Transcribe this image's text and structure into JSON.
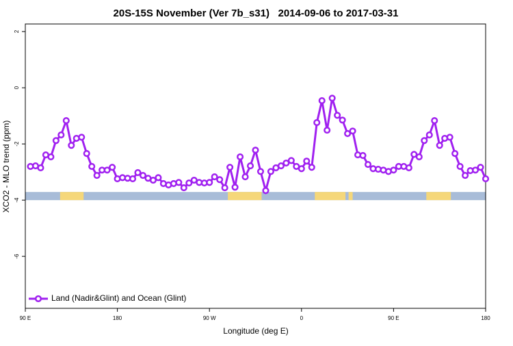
{
  "chart_data": {
    "type": "line",
    "title": "20S-15S November (Ver 7b_s31)   2014-09-06 to 2017-03-31",
    "xlabel": "Longitude (deg E)",
    "ylabel": "XCO2 - MLO trend (ppm)",
    "xlim": [
      90,
      540
    ],
    "ylim": [
      -7.85,
      2.27
    ],
    "xticks": [
      {
        "value": 90,
        "label": "90 E"
      },
      180,
      {
        "value": 270,
        "label": "90 W"
      },
      {
        "value": 360,
        "label": "0"
      },
      {
        "value": 450,
        "label": "90 E"
      },
      {
        "value": 540,
        "label": "180"
      }
    ],
    "yticks": [
      2,
      0,
      -2,
      -4,
      -6
    ],
    "grid": false,
    "legend": "bottom-left",
    "x": [
      95,
      100,
      105,
      110,
      115,
      120,
      125,
      130,
      135,
      140,
      145,
      150,
      155,
      160,
      165,
      170,
      175,
      180,
      185,
      190,
      195,
      200,
      205,
      210,
      215,
      220,
      225,
      230,
      235,
      240,
      245,
      250,
      255,
      260,
      265,
      270,
      275,
      280,
      285,
      290,
      295,
      300,
      305,
      310,
      315,
      320,
      325,
      330,
      335,
      340,
      345,
      350,
      355,
      360,
      365,
      370,
      375,
      380,
      385,
      390,
      395,
      400,
      405,
      410,
      415,
      420,
      425,
      430,
      435,
      440,
      445,
      450,
      455,
      460,
      465,
      470,
      475,
      480,
      485,
      490,
      495,
      500,
      505,
      510,
      515,
      520,
      525,
      530,
      535,
      540
    ],
    "series": [
      {
        "name": "Land (Nadir&Glint) and Ocean (Glint)",
        "color": "#a020f0",
        "values": [
          -2.8,
          -2.78,
          -2.85,
          -2.39,
          -2.46,
          -1.88,
          -1.68,
          -1.17,
          -2.05,
          -1.8,
          -1.76,
          -2.34,
          -2.8,
          -3.12,
          -2.93,
          -2.93,
          -2.83,
          -3.24,
          -3.2,
          -3.22,
          -3.24,
          -3.02,
          -3.12,
          -3.22,
          -3.29,
          -3.2,
          -3.41,
          -3.46,
          -3.41,
          -3.37,
          -3.56,
          -3.39,
          -3.29,
          -3.37,
          -3.39,
          -3.37,
          -3.17,
          -3.27,
          -3.56,
          -2.83,
          -3.54,
          -2.46,
          -3.17,
          -2.78,
          -2.22,
          -2.98,
          -3.66,
          -2.98,
          -2.85,
          -2.78,
          -2.68,
          -2.59,
          -2.8,
          -2.88,
          -2.61,
          -2.83,
          -1.24,
          -0.46,
          -1.51,
          -0.37,
          -0.98,
          -1.15,
          -1.63,
          -1.54,
          -2.39,
          -2.41,
          -2.73,
          -2.88,
          -2.9,
          -2.93,
          -2.98,
          -2.93,
          -2.8,
          -2.8,
          -2.85,
          -2.37,
          -2.46,
          -1.88,
          -1.68,
          -1.17,
          -2.05,
          -1.8,
          -1.76,
          -2.34,
          -2.8,
          -3.12,
          -2.95,
          -2.93,
          -2.83,
          -3.24
        ]
      }
    ],
    "mask": {
      "ylim": [
        -4.0,
        -3.71
      ],
      "ocean_color": "#a8bcd8",
      "land_color": "#f5d77a",
      "land_ranges": [
        [
          124,
          147
        ],
        [
          288,
          321
        ],
        [
          373,
          403
        ],
        [
          406,
          410
        ],
        [
          482,
          506
        ]
      ]
    }
  }
}
